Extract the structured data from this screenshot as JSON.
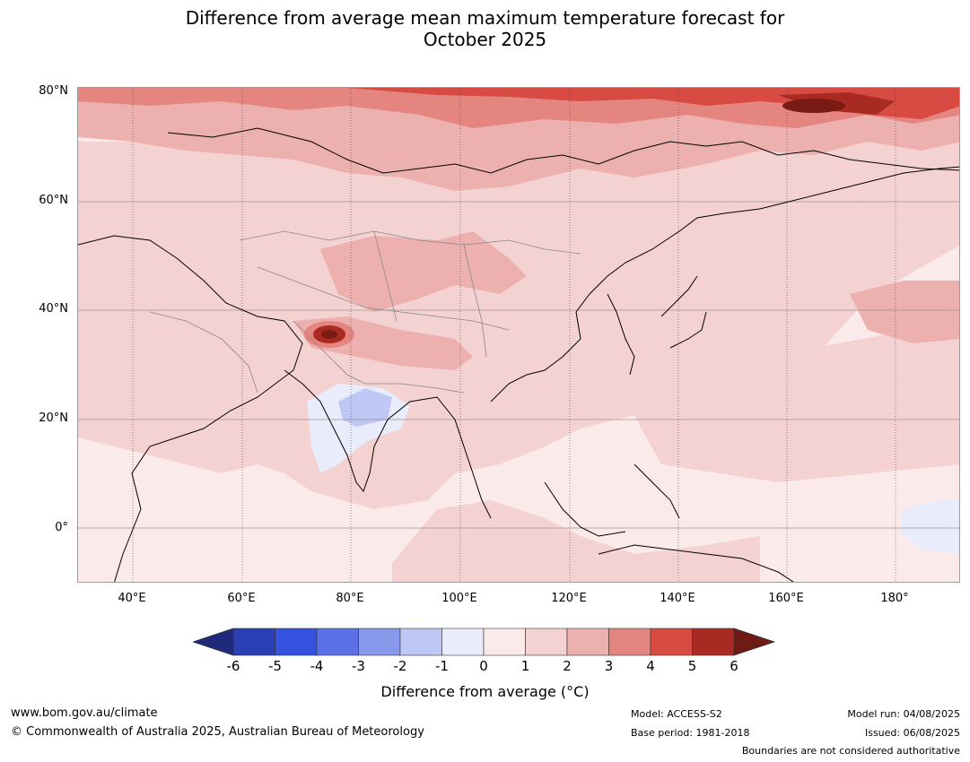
{
  "title_line1": "Difference from average mean maximum temperature forecast for",
  "title_line2": "October 2025",
  "map": {
    "lat_labels": [
      "80°N",
      "60°N",
      "40°N",
      "20°N",
      "0°"
    ],
    "lon_labels": [
      "40°E",
      "60°E",
      "80°E",
      "100°E",
      "120°E",
      "140°E",
      "160°E",
      "180°"
    ],
    "regions": {
      "ocean_warm": "#fbeaea",
      "land_warm": "#f3d2d1",
      "warmer": "#ecb0ae",
      "hot": "#e58580",
      "hotter": "#d84b42",
      "extreme": "#a82a22",
      "max": "#7a1a14",
      "cool": "#e8ecfb",
      "cooler": "#bfc7f5"
    }
  },
  "colorbar": {
    "labels": [
      "-6",
      "-5",
      "-4",
      "-3",
      "-2",
      "-1",
      "0",
      "1",
      "2",
      "3",
      "4",
      "5",
      "6"
    ],
    "colors": [
      "#1f2a7a",
      "#2a3fb4",
      "#3551e0",
      "#5c70e6",
      "#8899ec",
      "#bfc7f5",
      "#e8ecfb",
      "#fbeaea",
      "#f3d2d1",
      "#ecb0ae",
      "#e58580",
      "#d84b42",
      "#a82a22",
      "#6e1b16"
    ],
    "title": "Difference from average (°C)"
  },
  "footer": {
    "website": "www.bom.gov.au/climate",
    "copyright": "© Commonwealth of Australia 2025, Australian Bureau of Meteorology",
    "model": "Model: ACCESS-S2",
    "base_period": "Base period: 1981-2018",
    "model_run": "Model run: 04/08/2025",
    "issued": "Issued: 06/08/2025",
    "disclaimer": "Boundaries are not considered authoritative"
  }
}
